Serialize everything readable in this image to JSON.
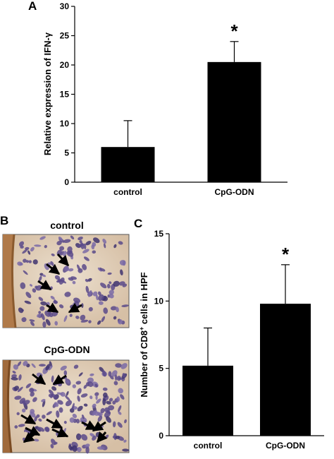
{
  "panels": {
    "a": "A",
    "b": "B",
    "c": "C"
  },
  "chart_data": [
    {
      "type": "bar",
      "panel": "A",
      "title": "",
      "xlabel": "",
      "ylabel": "Relative expression of IFN-γ",
      "categories": [
        "control",
        "CpG-ODN"
      ],
      "values": [
        6,
        20.5
      ],
      "errors": [
        4.5,
        3.5
      ],
      "yticks": [
        0,
        5,
        10,
        15,
        20,
        25,
        30
      ],
      "ylim": [
        0,
        30
      ],
      "annotations": [
        "",
        "*"
      ],
      "bar_color": "#000000"
    },
    {
      "type": "bar",
      "panel": "C",
      "title": "",
      "xlabel": "",
      "ylabel_parts": [
        "Number of CD8",
        "+",
        " cells in HPF"
      ],
      "categories": [
        "control",
        "CpG-ODN"
      ],
      "values": [
        5.2,
        9.8
      ],
      "errors": [
        2.8,
        2.9
      ],
      "yticks": [
        0,
        5,
        10,
        15
      ],
      "ylim": [
        0,
        15
      ],
      "annotations": [
        "",
        "*"
      ],
      "bar_color": "#000000"
    }
  ],
  "photos": {
    "top_title": "control",
    "bottom_title": "CpG-ODN"
  }
}
